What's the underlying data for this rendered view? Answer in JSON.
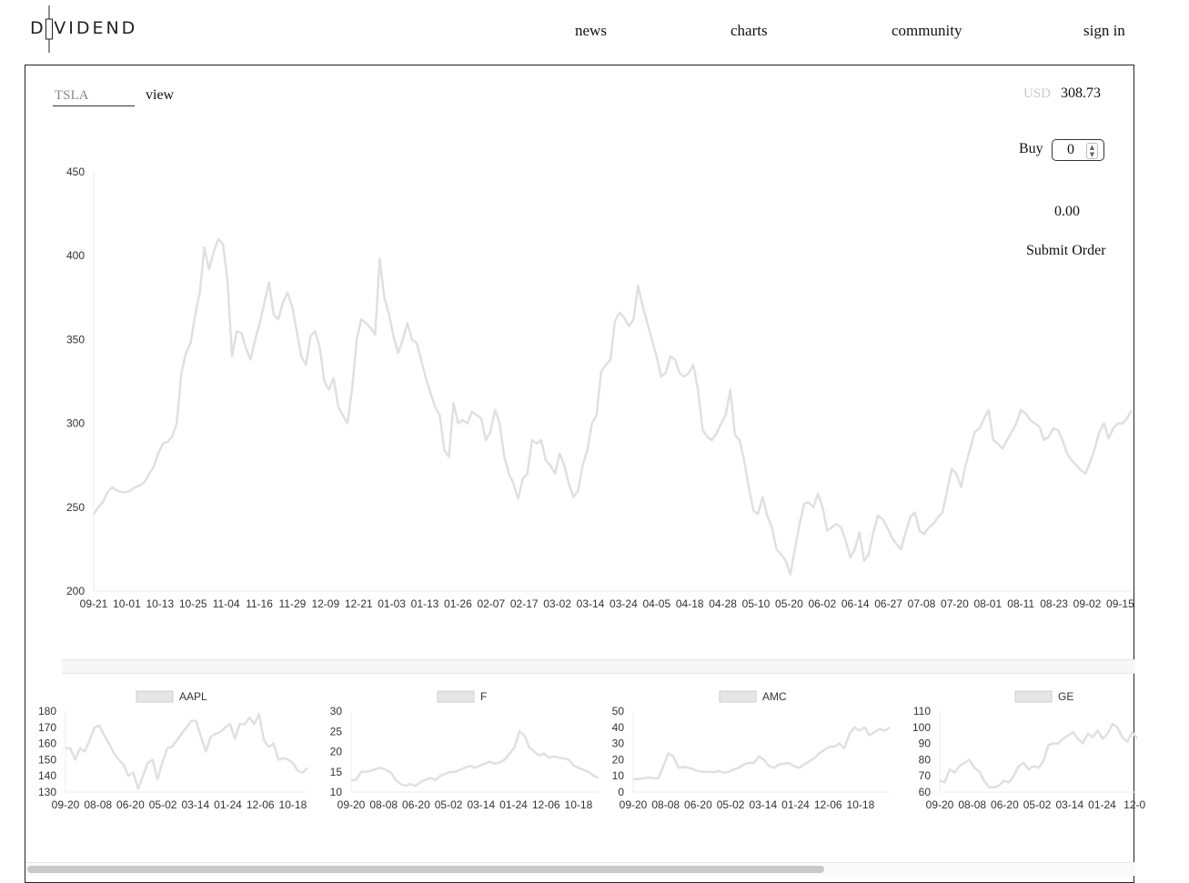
{
  "header": {
    "logo_text": "DIVIDEND",
    "nav": [
      "news",
      "charts",
      "community",
      "sign in"
    ]
  },
  "order": {
    "ticker_value": "TSLA",
    "view_label": "view",
    "currency": "USD",
    "price": "308.73",
    "buy_label": "Buy",
    "quantity": "0",
    "total": "0.00",
    "submit_label": "Submit Order"
  },
  "colors": {
    "line": "#e0e0e0",
    "axis": "#eeeeee",
    "text": "#333333"
  },
  "chart_data": [
    {
      "type": "line",
      "ylim": [
        200,
        450
      ],
      "yticks": [
        200,
        250,
        300,
        350,
        400,
        450
      ],
      "x_labels": [
        "09-21",
        "10-01",
        "10-13",
        "10-25",
        "11-04",
        "11-16",
        "11-29",
        "12-09",
        "12-21",
        "01-03",
        "01-13",
        "01-26",
        "02-07",
        "02-17",
        "03-02",
        "03-14",
        "03-24",
        "04-05",
        "04-18",
        "04-28",
        "05-10",
        "05-20",
        "06-02",
        "06-14",
        "06-27",
        "07-08",
        "07-20",
        "08-01",
        "08-11",
        "08-23",
        "09-02",
        "09-15"
      ],
      "values": [
        246,
        250,
        253,
        259,
        262,
        260,
        259,
        259,
        260,
        262,
        263,
        265,
        270,
        274,
        282,
        288,
        289,
        292,
        300,
        330,
        342,
        348,
        365,
        378,
        405,
        392,
        402,
        410,
        407,
        385,
        340,
        355,
        354,
        345,
        338,
        350,
        360,
        372,
        384,
        365,
        362,
        372,
        378,
        370,
        355,
        340,
        335,
        352,
        355,
        345,
        325,
        320,
        327,
        310,
        305,
        300,
        320,
        350,
        362,
        360,
        357,
        353,
        398,
        375,
        365,
        352,
        342,
        350,
        360,
        350,
        348,
        338,
        327,
        318,
        310,
        305,
        284,
        280,
        312,
        300,
        302,
        300,
        307,
        305,
        303,
        290,
        295,
        308,
        300,
        280,
        270,
        264,
        255,
        267,
        270,
        290,
        288,
        290,
        278,
        275,
        270,
        282,
        275,
        264,
        256,
        260,
        275,
        284,
        300,
        305,
        331,
        335,
        338,
        361,
        366,
        363,
        358,
        362,
        382,
        370,
        360,
        350,
        340,
        328,
        330,
        340,
        338,
        330,
        328,
        330,
        335,
        320,
        296,
        292,
        290,
        294,
        300,
        305,
        320,
        293,
        290,
        278,
        262,
        248,
        246,
        256,
        245,
        238,
        225,
        222,
        218,
        210,
        225,
        240,
        252,
        253,
        250,
        258,
        250,
        236,
        238,
        240,
        238,
        230,
        220,
        225,
        235,
        218,
        222,
        235,
        245,
        243,
        238,
        232,
        228,
        225,
        235,
        244,
        247,
        236,
        234,
        238,
        240,
        244,
        247,
        260,
        273,
        270,
        262,
        275,
        285,
        295,
        297,
        303,
        308,
        290,
        288,
        285,
        290,
        295,
        300,
        308,
        306,
        302,
        300,
        298,
        290,
        292,
        297,
        296,
        290,
        282,
        278,
        275,
        272,
        270,
        277,
        285,
        295,
        300,
        291,
        297,
        300,
        300,
        303,
        308
      ],
      "chart_type_note": "single series line, no legend"
    },
    {
      "type": "line",
      "legend": [
        "AAPL"
      ],
      "ylim": [
        130,
        180
      ],
      "yticks": [
        130,
        140,
        150,
        160,
        170,
        180
      ],
      "x_labels": [
        "09-20",
        "08-08",
        "06-20",
        "05-02",
        "03-14",
        "01-24",
        "12-06",
        "10-18"
      ],
      "series": [
        {
          "name": "AAPL",
          "values": [
            157,
            157,
            150,
            157,
            155,
            162,
            170,
            171,
            165,
            160,
            154,
            150,
            147,
            140,
            142,
            132,
            140,
            148,
            150,
            138,
            148,
            157,
            158,
            162,
            166,
            170,
            174,
            174,
            164,
            155,
            164,
            166,
            167,
            170,
            172,
            163,
            172,
            172,
            176,
            172,
            178,
            162,
            158,
            160,
            150,
            151,
            150,
            148,
            143,
            142,
            145
          ]
        }
      ]
    },
    {
      "type": "line",
      "legend": [
        "F"
      ],
      "ylim": [
        10,
        30
      ],
      "yticks": [
        10,
        15,
        20,
        25,
        30
      ],
      "x_labels": [
        "09-20",
        "08-08",
        "06-20",
        "05-02",
        "03-14",
        "01-24",
        "12-06",
        "10-18"
      ],
      "series": [
        {
          "name": "F",
          "values": [
            13,
            13,
            15,
            15,
            15.3,
            15.7,
            16,
            15.5,
            14.8,
            13,
            12,
            11.5,
            12,
            11.5,
            12.5,
            13,
            13.5,
            13,
            14,
            14.5,
            15,
            15,
            15.5,
            16,
            16.5,
            16,
            16.5,
            17,
            17.5,
            17,
            17.3,
            18,
            19.5,
            21,
            25,
            24,
            21,
            20,
            19,
            19.5,
            18.5,
            18.8,
            18.5,
            18.3,
            18,
            16.5,
            16,
            15.5,
            15,
            14,
            13.5
          ]
        }
      ]
    },
    {
      "type": "line",
      "legend": [
        "AMC"
      ],
      "ylim": [
        0,
        50
      ],
      "yticks": [
        0,
        10,
        20,
        30,
        40,
        50
      ],
      "x_labels": [
        "09-20",
        "08-08",
        "06-20",
        "05-02",
        "03-14",
        "01-24",
        "12-06",
        "10-18"
      ],
      "series": [
        {
          "name": "AMC",
          "values": [
            8,
            8,
            8.5,
            9,
            8.5,
            8.5,
            16,
            24,
            22,
            15,
            15.5,
            15,
            14,
            13,
            12.5,
            12.5,
            12.3,
            13,
            12,
            12.5,
            14,
            15,
            17,
            18,
            18,
            22,
            20,
            16,
            15,
            17,
            17.5,
            18,
            16,
            15,
            17,
            19,
            21,
            24,
            26,
            28,
            28,
            30,
            27,
            36,
            40,
            38,
            40,
            35,
            37,
            39,
            38,
            40
          ]
        }
      ]
    },
    {
      "type": "line",
      "legend": [
        "GE"
      ],
      "ylim": [
        60,
        110
      ],
      "yticks": [
        60,
        70,
        80,
        90,
        100,
        110
      ],
      "x_labels": [
        "09-20",
        "08-08",
        "06-20",
        "05-02",
        "03-14",
        "01-24",
        "12-0"
      ],
      "series": [
        {
          "name": "GE",
          "values": [
            67,
            66,
            74,
            72,
            76,
            78,
            80,
            75,
            73,
            67,
            63,
            63,
            64,
            67,
            66,
            70,
            76,
            78,
            74,
            76,
            75,
            79,
            89,
            90,
            90,
            93,
            95,
            97,
            93,
            90,
            96,
            94,
            98,
            93,
            96,
            102,
            100,
            94,
            91,
            97,
            93
          ]
        }
      ]
    }
  ]
}
